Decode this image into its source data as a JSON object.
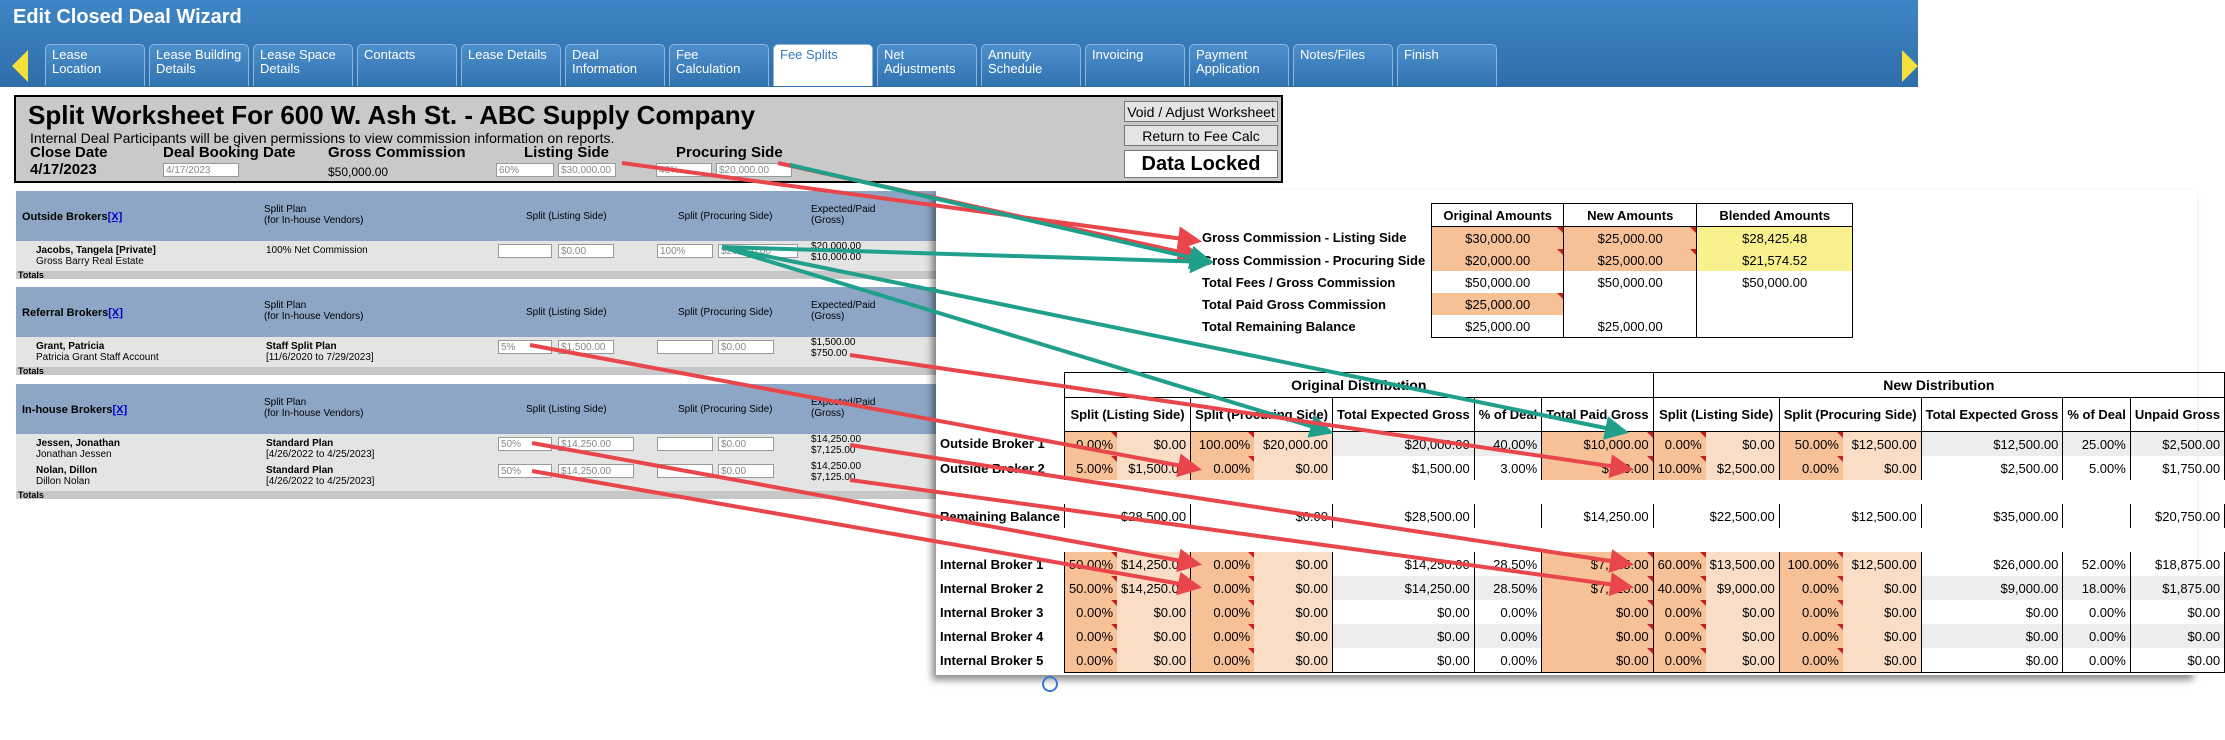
{
  "wizard": {
    "title": "Edit Closed Deal Wizard",
    "tabs": [
      "Lease Location",
      "Lease Building Details",
      "Lease Space Details",
      "Contacts",
      "Lease Details",
      "Deal Information",
      "Fee Calculation",
      "Fee Splits",
      "Net Adjustments",
      "Annuity Schedule",
      "Invoicing",
      "Payment Application",
      "Notes/Files",
      "Finish"
    ],
    "active_tab": "Fee Splits"
  },
  "worksheet": {
    "title": "Split Worksheet For 600 W. Ash St. - ABC Supply Company",
    "note": "Internal Deal Participants will be given permissions to view commission information on reports.",
    "close_date_label": "Close Date",
    "close_date": "4/17/2023",
    "booking_date_label": "Deal Booking Date",
    "booking_date": "4/17/2023",
    "gross_label": "Gross Commission",
    "gross_value": "$50,000.00",
    "listing_label": "Listing Side",
    "listing_pct": "60%",
    "listing_amt": "$30,000.00",
    "procuring_label": "Procuring Side",
    "procuring_pct": "40%",
    "procuring_amt": "$20,000.00",
    "void_button": "Void / Adjust Worksheet",
    "return_button": "Return to Fee Calc",
    "locked": "Data Locked"
  },
  "brokers": {
    "col_plan": "Split Plan",
    "col_plan_sub": "(for In-house Vendors)",
    "col_listing": "Split (Listing Side)",
    "col_procuring": "Split (Procuring Side)",
    "col_expected": "Expected/Paid",
    "col_expected_sub": "(Gross)",
    "totals": "Totals",
    "add_link": "[X]",
    "outside": {
      "title": "Outside Brokers",
      "rows": [
        {
          "name": "Jacobs, Tangela [Private]",
          "sub": "Gross Barry Real Estate",
          "plan": "100% Net Commission",
          "plan_sub": "",
          "lpct": "",
          "lamt": "$0.00",
          "ppct": "100%",
          "pamt": "$20,000.00",
          "exp": "$20,000.00",
          "paid": "$10,000.00"
        }
      ]
    },
    "referral": {
      "title": "Referral Brokers",
      "rows": [
        {
          "name": "Grant, Patricia",
          "sub": "Patricia Grant Staff Account",
          "plan": "Staff Split Plan",
          "plan_sub": "[11/6/2020 to 7/29/2023]",
          "lpct": "5%",
          "lamt": "$1,500.00",
          "ppct": "",
          "pamt": "$0.00",
          "exp": "$1,500.00",
          "paid": "$750.00"
        }
      ]
    },
    "inhouse": {
      "title": "In-house Brokers",
      "rows": [
        {
          "name": "Jessen, Jonathan",
          "sub": "Jonathan Jessen",
          "plan": "Standard Plan",
          "plan_sub": "[4/26/2022 to 4/25/2023]",
          "lpct": "50%",
          "lamt": "$14,250.00",
          "ppct": "",
          "pamt": "$0.00",
          "exp": "$14,250.00",
          "paid": "$7,125.00"
        },
        {
          "name": "Nolan, Dillon",
          "sub": "Dillon Nolan",
          "plan": "Standard Plan",
          "plan_sub": "[4/26/2022 to 4/25/2023]",
          "lpct": "50%",
          "lamt": "$14,250.00",
          "ppct": "",
          "pamt": "$0.00",
          "exp": "$14,250.00",
          "paid": "$7,125.00"
        }
      ]
    }
  },
  "summary": {
    "headers": [
      "Original Amounts",
      "New Amounts",
      "Blended Amounts"
    ],
    "rows": [
      {
        "label": "Gross Commission - Listing Side",
        "orig": "$30,000.00",
        "new": "$25,000.00",
        "blend": "$28,425.48"
      },
      {
        "label": "Gross Commission - Procuring Side",
        "orig": "$20,000.00",
        "new": "$25,000.00",
        "blend": "$21,574.52"
      },
      {
        "label": "Total Fees / Gross Commission",
        "orig": "$50,000.00",
        "new": "$50,000.00",
        "blend": "$50,000.00"
      },
      {
        "label": "Total Paid Gross Commission",
        "orig": "$25,000.00",
        "new": "",
        "blend": ""
      },
      {
        "label": "Total Remaining Balance",
        "orig": "$25,000.00",
        "new": "$25,000.00",
        "blend": ""
      }
    ]
  },
  "distribution": {
    "original_title": "Original Distribution",
    "new_title": "New Distribution",
    "orig_cols": [
      "Split (Listing Side)",
      "Split (Procuring Side)",
      "Total Expected Gross",
      "% of Deal",
      "Total Paid Gross"
    ],
    "new_cols": [
      "Split (Listing Side)",
      "Split (Procuring Side)",
      "Total Expected Gross",
      "% of Deal",
      "Unpaid Gross"
    ],
    "rows": [
      {
        "label": "Outside Broker 1",
        "o": [
          "0.00%",
          "$0.00",
          "100.00%",
          "$20,000.00",
          "$20,000.00",
          "40.00%",
          "$10,000.00"
        ],
        "n": [
          "0.00%",
          "$0.00",
          "50.00%",
          "$12,500.00",
          "$12,500.00",
          "25.00%",
          "$2,500.00"
        ]
      },
      {
        "label": "Outside Broker 2",
        "o": [
          "5.00%",
          "$1,500.00",
          "0.00%",
          "$0.00",
          "$1,500.00",
          "3.00%",
          "$750.00"
        ],
        "n": [
          "10.00%",
          "$2,500.00",
          "0.00%",
          "$0.00",
          "$2,500.00",
          "5.00%",
          "$1,750.00"
        ]
      },
      {
        "label": "Remaining Balance",
        "o": [
          "",
          "$28,500.00",
          "",
          "$0.00",
          "$28,500.00",
          "",
          "$14,250.00"
        ],
        "n": [
          "",
          "$22,500.00",
          "",
          "$12,500.00",
          "$35,000.00",
          "",
          "$20,750.00"
        ]
      },
      {
        "label": "Internal Broker 1",
        "o": [
          "50.00%",
          "$14,250.00",
          "0.00%",
          "$0.00",
          "$14,250.00",
          "28.50%",
          "$7,125.00"
        ],
        "n": [
          "60.00%",
          "$13,500.00",
          "100.00%",
          "$12,500.00",
          "$26,000.00",
          "52.00%",
          "$18,875.00"
        ]
      },
      {
        "label": "Internal Broker 2",
        "o": [
          "50.00%",
          "$14,250.00",
          "0.00%",
          "$0.00",
          "$14,250.00",
          "28.50%",
          "$7,125.00"
        ],
        "n": [
          "40.00%",
          "$9,000.00",
          "0.00%",
          "$0.00",
          "$9,000.00",
          "18.00%",
          "$1,875.00"
        ]
      },
      {
        "label": "Internal Broker 3",
        "o": [
          "0.00%",
          "$0.00",
          "0.00%",
          "$0.00",
          "$0.00",
          "0.00%",
          "$0.00"
        ],
        "n": [
          "0.00%",
          "$0.00",
          "0.00%",
          "$0.00",
          "$0.00",
          "0.00%",
          "$0.00"
        ]
      },
      {
        "label": "Internal Broker 4",
        "o": [
          "0.00%",
          "$0.00",
          "0.00%",
          "$0.00",
          "$0.00",
          "0.00%",
          "$0.00"
        ],
        "n": [
          "0.00%",
          "$0.00",
          "0.00%",
          "$0.00",
          "$0.00",
          "0.00%",
          "$0.00"
        ]
      },
      {
        "label": "Internal Broker 5",
        "o": [
          "0.00%",
          "$0.00",
          "0.00%",
          "$0.00",
          "$0.00",
          "0.00%",
          "$0.00"
        ],
        "n": [
          "0.00%",
          "$0.00",
          "0.00%",
          "$0.00",
          "$0.00",
          "0.00%",
          "$0.00"
        ]
      }
    ]
  },
  "colors": {
    "header_blue": "#2d6ea9",
    "red_arrow": "#e8464a",
    "green_arrow": "#20a08a",
    "peach": "#f7c198",
    "yellow": "#f9f28c"
  }
}
